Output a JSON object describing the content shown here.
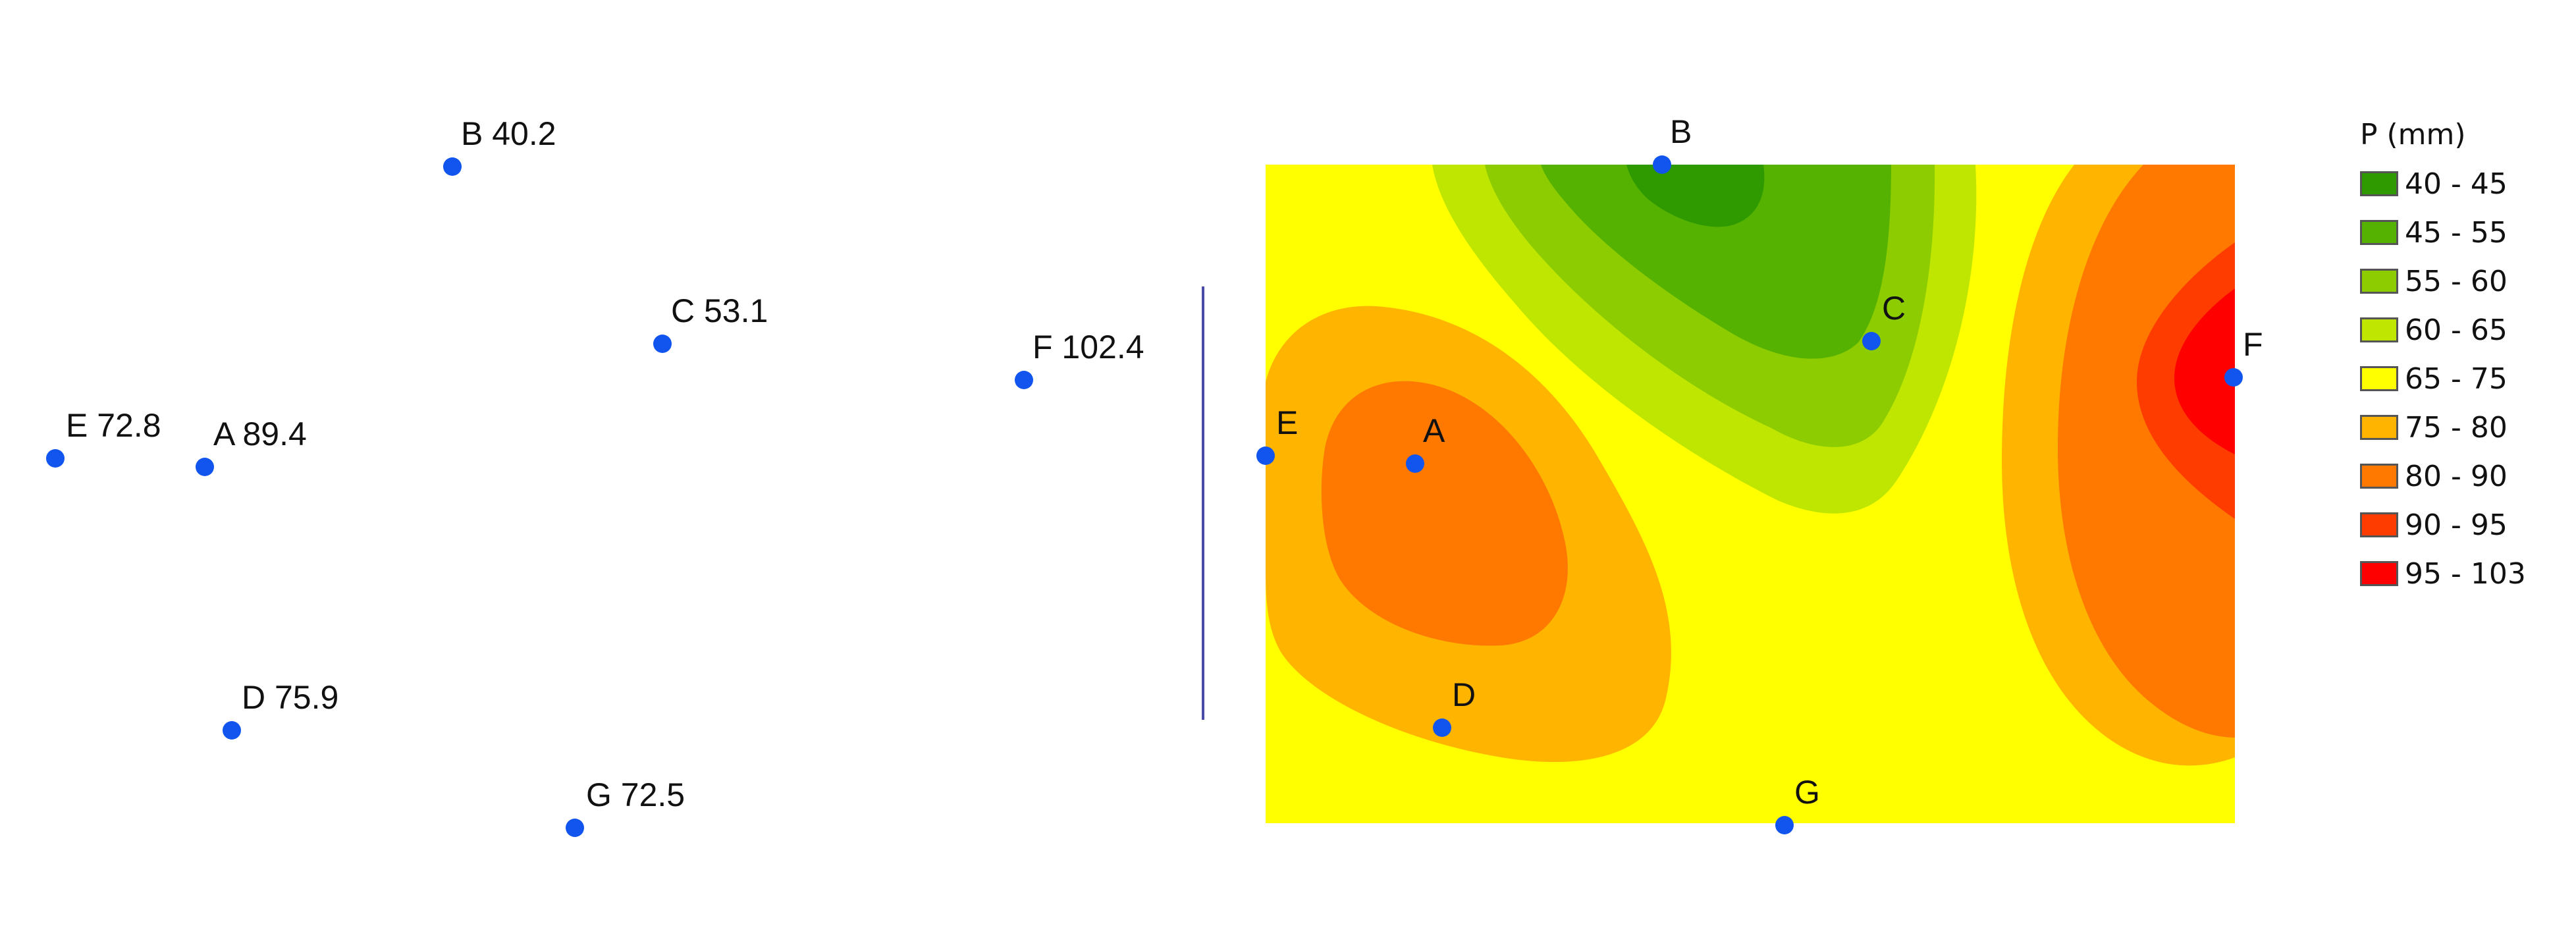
{
  "point_map": {
    "stations": [
      {
        "id": "A",
        "label": "A 89.4",
        "value": 89.4
      },
      {
        "id": "B",
        "label": "B 40.2",
        "value": 40.2
      },
      {
        "id": "C",
        "label": "C 53.1",
        "value": 53.1
      },
      {
        "id": "D",
        "label": "D 75.9",
        "value": 75.9
      },
      {
        "id": "E",
        "label": "E 72.8",
        "value": 72.8
      },
      {
        "id": "F",
        "label": "F 102.4",
        "value": 102.4
      },
      {
        "id": "G",
        "label": "G 72.5",
        "value": 72.5
      }
    ]
  },
  "contour_map": {
    "station_labels": [
      "A",
      "B",
      "C",
      "D",
      "E",
      "F",
      "G"
    ]
  },
  "legend": {
    "title": "P (mm)",
    "classes": [
      {
        "label": "40 - 45",
        "color": "#2e9a00"
      },
      {
        "label": "45 - 55",
        "color": "#55b200"
      },
      {
        "label": "55 - 60",
        "color": "#8ccc00"
      },
      {
        "label": "60 - 65",
        "color": "#bee600"
      },
      {
        "label": "65 - 75",
        "color": "#ffff00"
      },
      {
        "label": "75 - 80",
        "color": "#ffb400"
      },
      {
        "label": "80 - 90",
        "color": "#ff7800"
      },
      {
        "label": "90 - 95",
        "color": "#ff3c00"
      },
      {
        "label": "95 - 103",
        "color": "#ff0000"
      }
    ]
  },
  "colors": {
    "station_marker": "#1155ee",
    "divider": "#4a4aa8"
  }
}
